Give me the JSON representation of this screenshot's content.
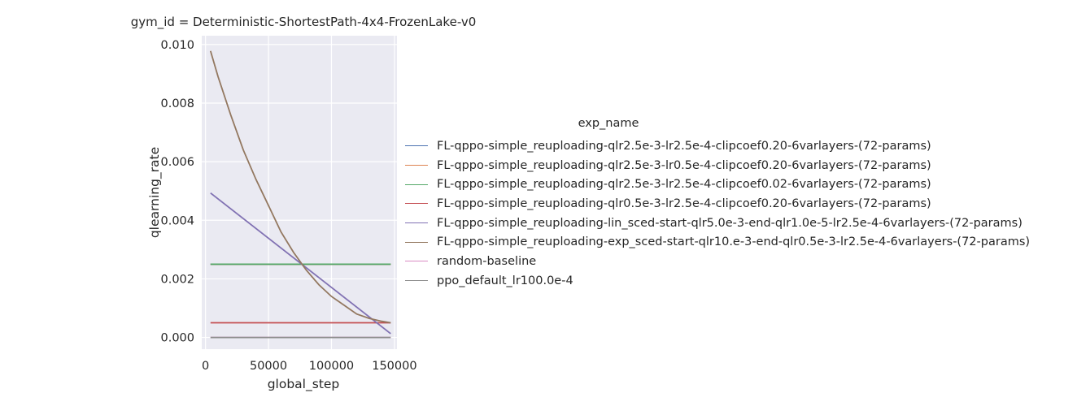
{
  "chart_data": {
    "type": "line",
    "title": "gym_id = Deterministic-ShortestPath-4x4-FrozenLake-v0",
    "xlabel": "global_step",
    "ylabel": "qlearning_rate",
    "xlim": [
      -3000,
      152000
    ],
    "ylim": [
      -0.0004,
      0.0103
    ],
    "xticks": [
      "0",
      "50000",
      "100000",
      "150000"
    ],
    "xtick_values": [
      0,
      50000,
      100000,
      150000
    ],
    "yticks": [
      "0.000",
      "0.002",
      "0.004",
      "0.006",
      "0.008",
      "0.010"
    ],
    "ytick_values": [
      0,
      0.002,
      0.004,
      0.006,
      0.008,
      0.01
    ],
    "grid": true,
    "legend_title": "exp_name",
    "legend_position": "right",
    "series": [
      {
        "name": "FL-qppo-simple_reuploading-qlr2.5e-3-lr2.5e-4-clipcoef0.20-6varlayers-(72-params)",
        "color": "#4c72b0",
        "x": [
          4000,
          147000
        ],
        "y": [
          0.0025,
          0.0025
        ]
      },
      {
        "name": "FL-qppo-simple_reuploading-qlr2.5e-3-lr0.5e-4-clipcoef0.20-6varlayers-(72-params)",
        "color": "#dd8452",
        "x": [
          4000,
          147000
        ],
        "y": [
          0.0025,
          0.0025
        ]
      },
      {
        "name": "FL-qppo-simple_reuploading-qlr2.5e-3-lr2.5e-4-clipcoef0.02-6varlayers-(72-params)",
        "color": "#55a868",
        "x": [
          4000,
          147000
        ],
        "y": [
          0.0025,
          0.0025
        ]
      },
      {
        "name": "FL-qppo-simple_reuploading-qlr0.5e-3-lr2.5e-4-clipcoef0.20-6varlayers-(72-params)",
        "color": "#c44e52",
        "x": [
          4000,
          147000
        ],
        "y": [
          0.0005,
          0.0005
        ]
      },
      {
        "name": "FL-qppo-simple_reuploading-lin_sced-start-qlr5.0e-3-end-qlr1.0e-5-lr2.5e-4-6varlayers-(72-params)",
        "color": "#8172b3",
        "x": [
          4000,
          147000
        ],
        "y": [
          0.00493,
          0.00013
        ]
      },
      {
        "name": "FL-qppo-simple_reuploading-exp_sced-start-qlr10.e-3-end-qlr0.5e-3-lr2.5e-4-6varlayers-(72-params)",
        "color": "#937860",
        "x": [
          4000,
          10000,
          20000,
          30000,
          40000,
          50000,
          60000,
          70000,
          80000,
          90000,
          100000,
          110000,
          120000,
          130000,
          140000,
          147000
        ],
        "y": [
          0.00978,
          0.0089,
          0.0076,
          0.0064,
          0.0054,
          0.0045,
          0.0036,
          0.0029,
          0.0023,
          0.0018,
          0.0014,
          0.0011,
          0.0008,
          0.00065,
          0.00055,
          0.0005
        ]
      },
      {
        "name": "random-baseline",
        "color": "#da8bc3",
        "x": [
          4000,
          147000
        ],
        "y": [
          0.0,
          0.0
        ]
      },
      {
        "name": "ppo_default_lr100.0e-4",
        "color": "#8c8c8c",
        "x": [
          4000,
          147000
        ],
        "y": [
          0.0,
          0.0
        ]
      }
    ]
  }
}
